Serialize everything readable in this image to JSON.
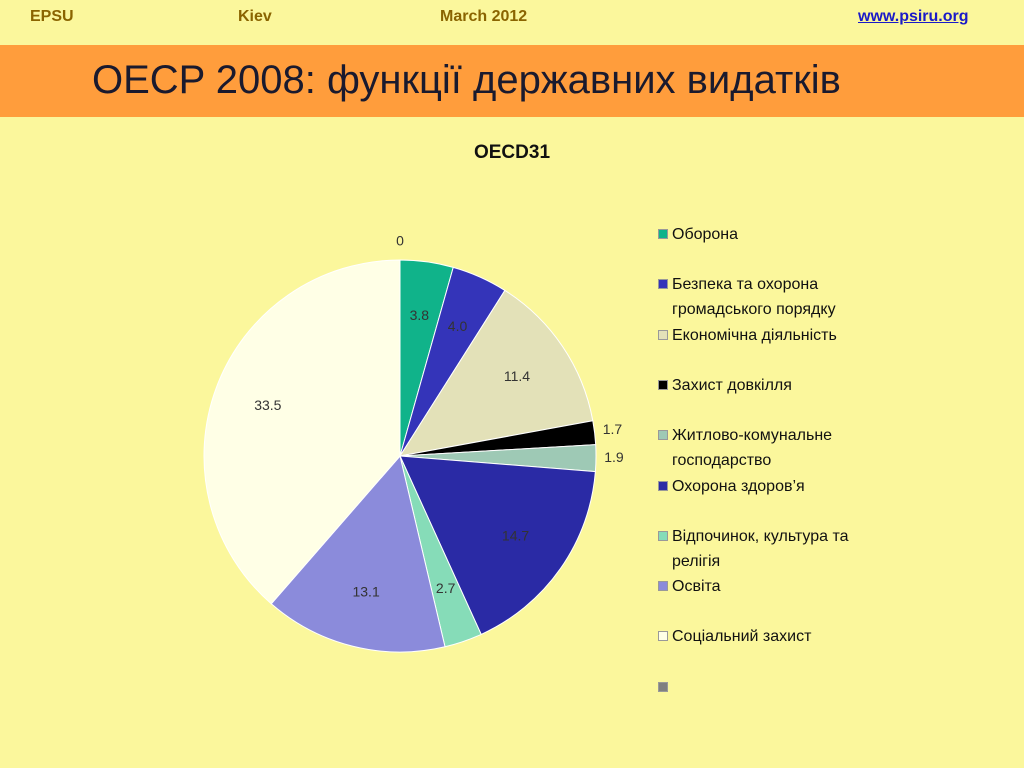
{
  "header": {
    "left": "EPSU",
    "city": "Kiev",
    "date": "March 2012",
    "link": "www.psiru.org"
  },
  "slide_title": "OECP 2008: функції державних видатків",
  "chart_data": {
    "type": "pie",
    "title": "OECD31",
    "categories": [
      "Оборона",
      "Безпека та охорона громадського порядку",
      "Економічна діяльність",
      "Захист довкілля",
      "Житлово-комунальне господарство",
      "Охорона здоров’я",
      "Відпочинок, культура та релігія",
      "Освіта",
      "Соціальний захист",
      null
    ],
    "values": [
      3.8,
      4.0,
      11.4,
      1.7,
      1.9,
      14.7,
      2.7,
      13.1,
      33.5,
      0
    ],
    "value_labels": [
      "3.8",
      "4.0",
      "11.4",
      "1.7",
      "1.9",
      "14.7",
      "2.7",
      "13.1",
      "33.5",
      "0"
    ],
    "colors": [
      "#10b38a",
      "#3434b9",
      "#e3e1b8",
      "#000000",
      "#9ec9b5",
      "#2a2aa5",
      "#86dcb8",
      "#8b8bdb",
      "#ffffe6",
      "#808080"
    ],
    "legend": "right"
  }
}
